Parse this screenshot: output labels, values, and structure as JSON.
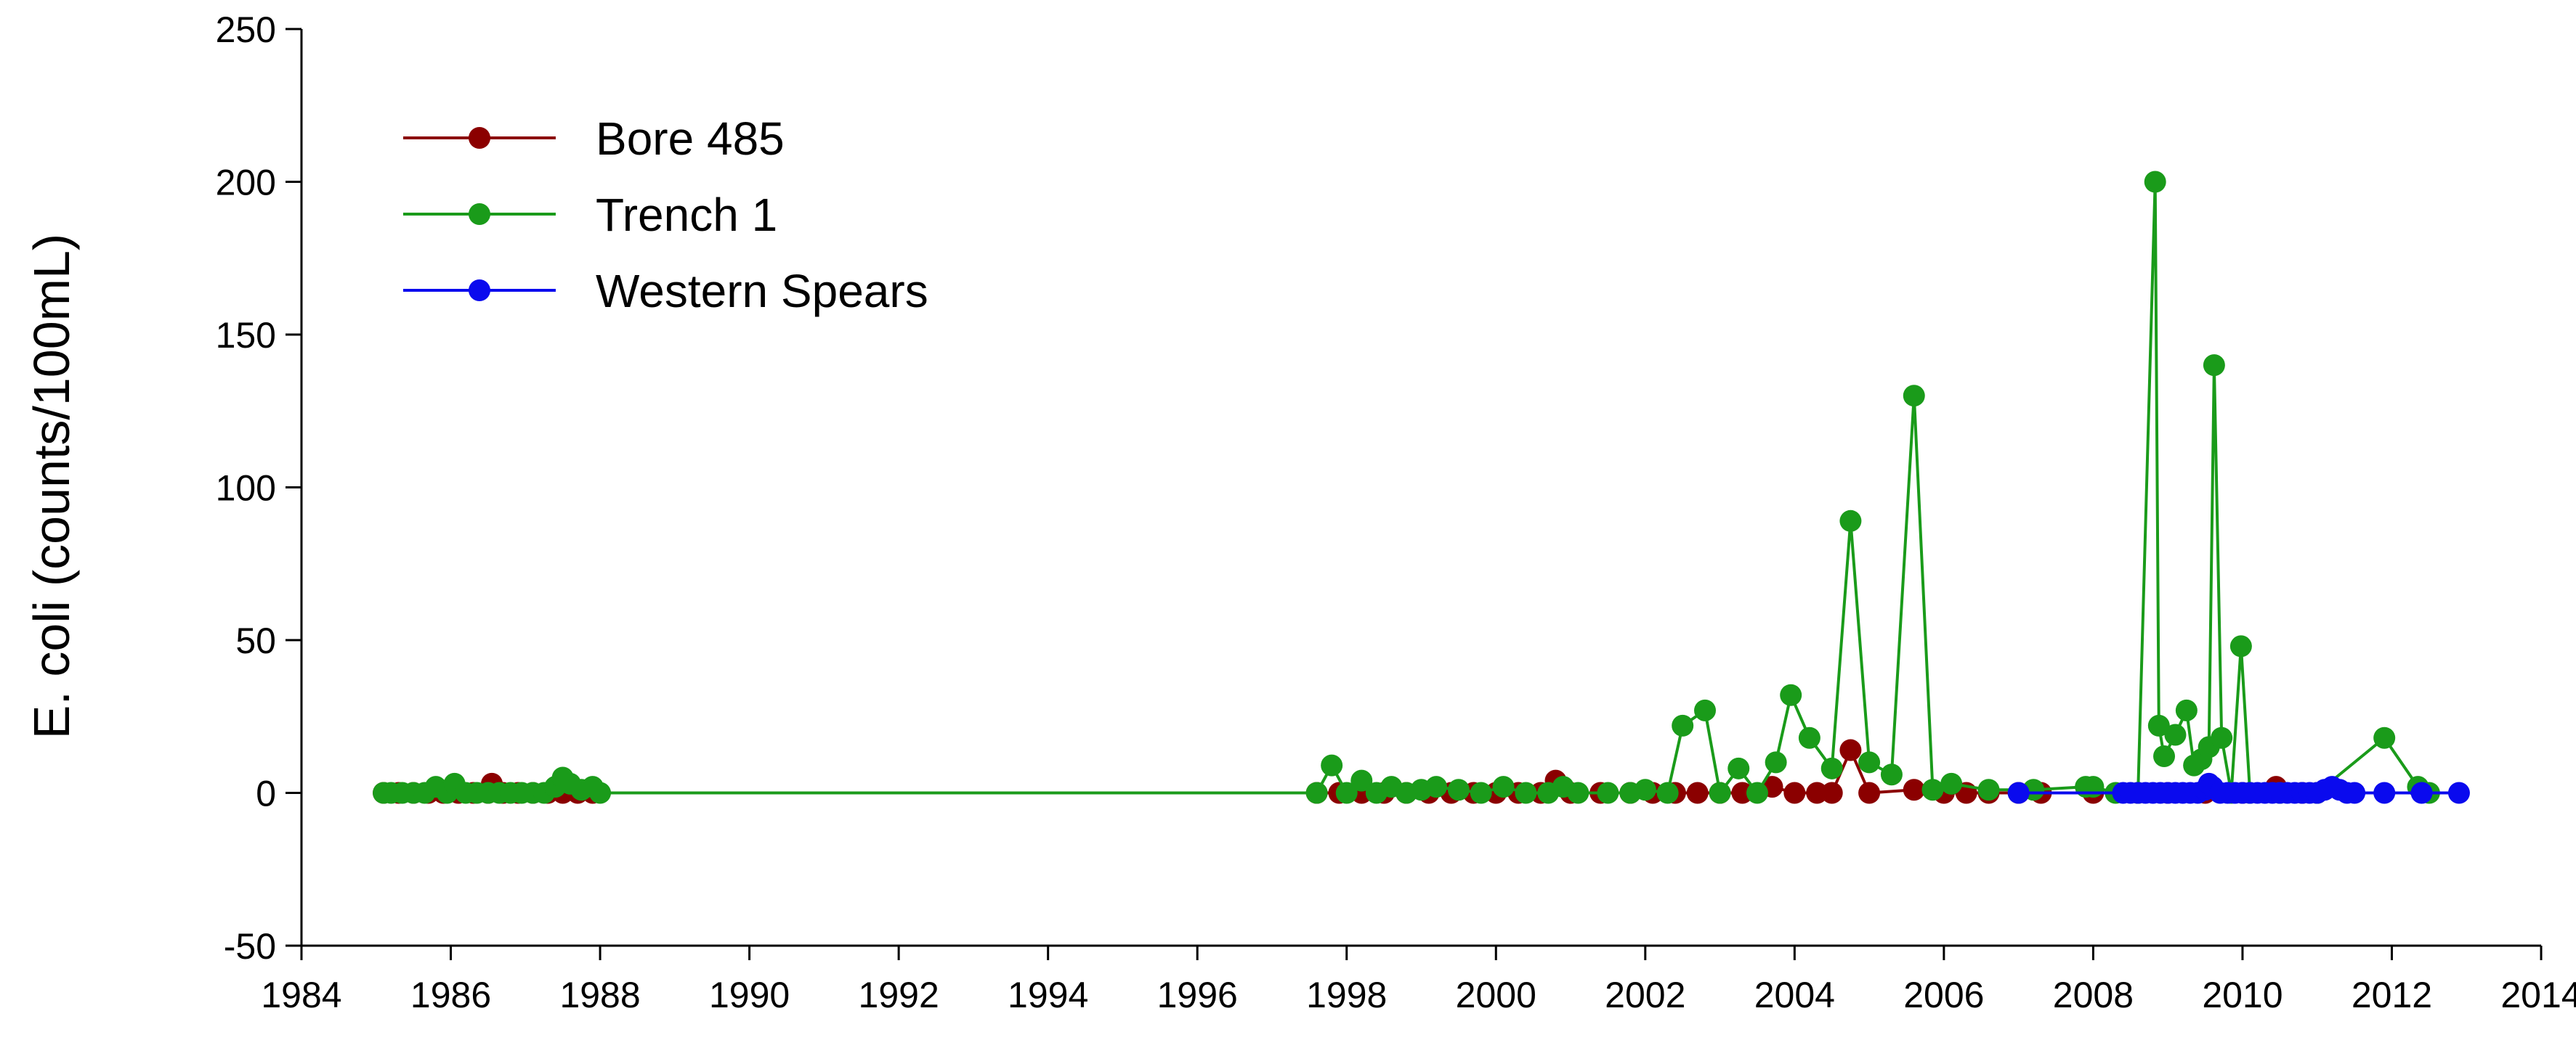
{
  "chart_data": {
    "type": "line",
    "title": "",
    "xlabel": "",
    "ylabel": "E. coli (counts/100mL)",
    "xlim": [
      1984,
      2014
    ],
    "ylim": [
      -50,
      250
    ],
    "x_ticks": [
      1984,
      1986,
      1988,
      1990,
      1992,
      1994,
      1996,
      1998,
      2000,
      2002,
      2004,
      2006,
      2008,
      2010,
      2012,
      2014
    ],
    "y_ticks": [
      -50,
      0,
      50,
      100,
      150,
      200,
      250
    ],
    "grid": false,
    "legend_position": "top-left",
    "series": [
      {
        "name": "Bore 485",
        "color": "#8b0000",
        "points": [
          [
            1985.1,
            0
          ],
          [
            1985.3,
            0
          ],
          [
            1985.5,
            0
          ],
          [
            1985.7,
            0
          ],
          [
            1985.9,
            0
          ],
          [
            1986.1,
            0
          ],
          [
            1986.3,
            0
          ],
          [
            1986.5,
            0
          ],
          [
            1986.55,
            3
          ],
          [
            1986.7,
            0
          ],
          [
            1986.9,
            0
          ],
          [
            1987.1,
            0
          ],
          [
            1987.3,
            0
          ],
          [
            1987.5,
            0
          ],
          [
            1987.7,
            0
          ],
          [
            1987.9,
            0
          ],
          [
            1997.6,
            0
          ],
          [
            1997.9,
            0
          ],
          [
            1998.2,
            0
          ],
          [
            1998.5,
            0
          ],
          [
            1998.8,
            0
          ],
          [
            1999.1,
            0
          ],
          [
            1999.4,
            0
          ],
          [
            1999.7,
            0
          ],
          [
            2000.0,
            0
          ],
          [
            2000.3,
            0
          ],
          [
            2000.6,
            0
          ],
          [
            2000.8,
            4
          ],
          [
            2001.0,
            0
          ],
          [
            2001.4,
            0
          ],
          [
            2001.8,
            0
          ],
          [
            2002.1,
            0
          ],
          [
            2002.4,
            0
          ],
          [
            2002.7,
            0
          ],
          [
            2003.0,
            0
          ],
          [
            2003.3,
            0
          ],
          [
            2003.7,
            2
          ],
          [
            2004.0,
            0
          ],
          [
            2004.3,
            0
          ],
          [
            2004.5,
            0
          ],
          [
            2004.75,
            14
          ],
          [
            2005.0,
            0
          ],
          [
            2005.6,
            1
          ],
          [
            2006.0,
            0
          ],
          [
            2006.3,
            0
          ],
          [
            2006.6,
            0
          ],
          [
            2007.0,
            0
          ],
          [
            2007.3,
            0
          ],
          [
            2008.0,
            0
          ],
          [
            2008.6,
            0
          ],
          [
            2009.0,
            0
          ],
          [
            2009.5,
            0
          ],
          [
            2010.0,
            0
          ],
          [
            2010.45,
            2
          ],
          [
            2010.8,
            0
          ],
          [
            2011.0,
            0
          ]
        ]
      },
      {
        "name": "Trench 1",
        "color": "#1a9b1a",
        "points": [
          [
            1985.1,
            0
          ],
          [
            1985.2,
            0
          ],
          [
            1985.35,
            0
          ],
          [
            1985.5,
            0
          ],
          [
            1985.65,
            0
          ],
          [
            1985.8,
            2
          ],
          [
            1985.95,
            0
          ],
          [
            1986.05,
            3
          ],
          [
            1986.2,
            0
          ],
          [
            1986.35,
            0
          ],
          [
            1986.5,
            0
          ],
          [
            1986.65,
            0
          ],
          [
            1986.8,
            0
          ],
          [
            1986.95,
            0
          ],
          [
            1987.1,
            0
          ],
          [
            1987.25,
            0
          ],
          [
            1987.4,
            2
          ],
          [
            1987.5,
            5
          ],
          [
            1987.6,
            3
          ],
          [
            1987.75,
            1
          ],
          [
            1987.9,
            2
          ],
          [
            1988.0,
            0
          ],
          [
            1997.6,
            0
          ],
          [
            1997.8,
            9
          ],
          [
            1998.0,
            0
          ],
          [
            1998.2,
            4
          ],
          [
            1998.4,
            0
          ],
          [
            1998.6,
            2
          ],
          [
            1998.8,
            0
          ],
          [
            1999.0,
            1
          ],
          [
            1999.2,
            2
          ],
          [
            1999.5,
            1
          ],
          [
            1999.8,
            0
          ],
          [
            2000.1,
            2
          ],
          [
            2000.4,
            0
          ],
          [
            2000.7,
            0
          ],
          [
            2000.9,
            2
          ],
          [
            2001.1,
            0
          ],
          [
            2001.5,
            0
          ],
          [
            2001.8,
            0
          ],
          [
            2002.0,
            1
          ],
          [
            2002.3,
            0
          ],
          [
            2002.5,
            22
          ],
          [
            2002.8,
            27
          ],
          [
            2003.0,
            0
          ],
          [
            2003.25,
            8
          ],
          [
            2003.5,
            0
          ],
          [
            2003.75,
            10
          ],
          [
            2003.95,
            32
          ],
          [
            2004.2,
            18
          ],
          [
            2004.5,
            8
          ],
          [
            2004.75,
            89
          ],
          [
            2005.0,
            10
          ],
          [
            2005.3,
            6
          ],
          [
            2005.6,
            130
          ],
          [
            2005.85,
            1
          ],
          [
            2006.1,
            3
          ],
          [
            2006.6,
            1
          ],
          [
            2007.2,
            1
          ],
          [
            2007.9,
            2
          ],
          [
            2008.0,
            2
          ],
          [
            2008.3,
            0
          ],
          [
            2008.6,
            0
          ],
          [
            2008.83,
            200
          ],
          [
            2008.88,
            22
          ],
          [
            2008.95,
            12
          ],
          [
            2009.1,
            19
          ],
          [
            2009.25,
            27
          ],
          [
            2009.35,
            9
          ],
          [
            2009.45,
            11
          ],
          [
            2009.55,
            15
          ],
          [
            2009.62,
            140
          ],
          [
            2009.72,
            18
          ],
          [
            2009.85,
            0
          ],
          [
            2009.98,
            48
          ],
          [
            2010.1,
            0
          ],
          [
            2010.5,
            0
          ],
          [
            2011.0,
            0
          ],
          [
            2011.9,
            18
          ],
          [
            2012.35,
            2
          ],
          [
            2012.5,
            0
          ]
        ]
      },
      {
        "name": "Western Spears",
        "color": "#0a0aee",
        "points": [
          [
            2007.0,
            0
          ],
          [
            2008.4,
            0
          ],
          [
            2008.5,
            0
          ],
          [
            2008.6,
            0
          ],
          [
            2008.7,
            0
          ],
          [
            2008.8,
            0
          ],
          [
            2008.9,
            0
          ],
          [
            2009.0,
            0
          ],
          [
            2009.1,
            0
          ],
          [
            2009.2,
            0
          ],
          [
            2009.3,
            0
          ],
          [
            2009.4,
            0
          ],
          [
            2009.5,
            1
          ],
          [
            2009.55,
            3
          ],
          [
            2009.6,
            2
          ],
          [
            2009.7,
            0
          ],
          [
            2009.8,
            0
          ],
          [
            2009.9,
            0
          ],
          [
            2010.0,
            0
          ],
          [
            2010.1,
            0
          ],
          [
            2010.2,
            0
          ],
          [
            2010.3,
            0
          ],
          [
            2010.4,
            0
          ],
          [
            2010.5,
            0
          ],
          [
            2010.6,
            0
          ],
          [
            2010.7,
            0
          ],
          [
            2010.8,
            0
          ],
          [
            2010.9,
            0
          ],
          [
            2011.0,
            0
          ],
          [
            2011.1,
            1
          ],
          [
            2011.2,
            2
          ],
          [
            2011.3,
            1
          ],
          [
            2011.4,
            0
          ],
          [
            2011.5,
            0
          ],
          [
            2011.9,
            0
          ],
          [
            2012.4,
            0
          ],
          [
            2012.9,
            0
          ]
        ]
      }
    ]
  }
}
